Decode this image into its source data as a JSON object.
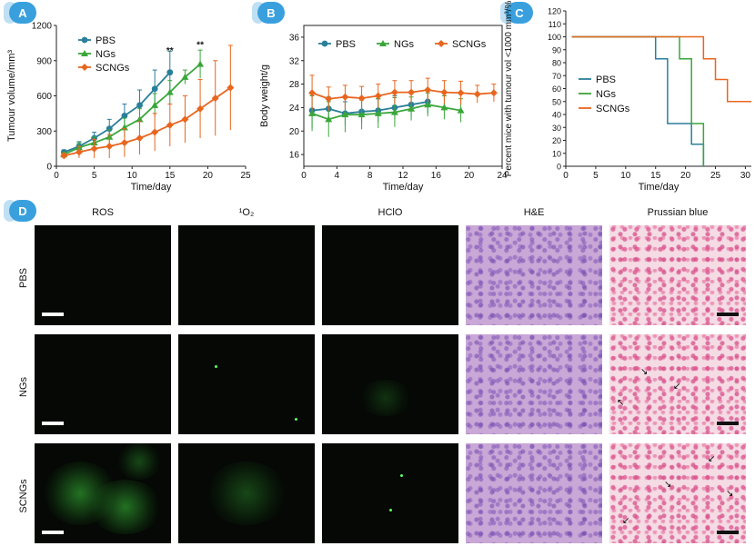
{
  "panels": {
    "A": {
      "badge": "A"
    },
    "B": {
      "badge": "B"
    },
    "C": {
      "badge": "C"
    },
    "D": {
      "badge": "D"
    }
  },
  "chart_data": [
    {
      "type": "line",
      "xlabel": "Time/day",
      "ylabel": "Tumour volume/mm³",
      "xlim": [
        0,
        25
      ],
      "ylim": [
        0,
        1200
      ],
      "xticks": [
        0,
        5,
        10,
        15,
        20,
        25
      ],
      "yticks": [
        0,
        300,
        600,
        900,
        1200
      ],
      "legend": "top-left",
      "annotations": [
        "**",
        "**"
      ],
      "series": [
        {
          "name": "PBS",
          "color": "#2a7f9a",
          "marker": "circle",
          "x": [
            1,
            3,
            5,
            7,
            9,
            11,
            13,
            15
          ],
          "y": [
            120,
            170,
            240,
            320,
            430,
            520,
            660,
            800
          ],
          "err": [
            20,
            40,
            50,
            80,
            100,
            130,
            160,
            180
          ]
        },
        {
          "name": "NGs",
          "color": "#3aa63a",
          "marker": "triangle",
          "x": [
            1,
            3,
            5,
            7,
            9,
            11,
            13,
            15,
            17,
            19
          ],
          "y": [
            100,
            160,
            200,
            250,
            330,
            400,
            520,
            630,
            760,
            870
          ],
          "err": [
            20,
            40,
            50,
            60,
            80,
            90,
            100,
            100,
            60,
            120
          ]
        },
        {
          "name": "SCNGs",
          "color": "#e8661f",
          "marker": "diamond",
          "x": [
            1,
            3,
            5,
            7,
            9,
            11,
            13,
            15,
            17,
            19,
            21,
            23
          ],
          "y": [
            90,
            120,
            150,
            170,
            200,
            240,
            290,
            350,
            400,
            490,
            580,
            670
          ],
          "err": [
            20,
            50,
            80,
            100,
            120,
            140,
            160,
            180,
            200,
            250,
            320,
            360
          ]
        }
      ]
    },
    {
      "type": "line",
      "xlabel": "Time/day",
      "ylabel": "Body weight/g",
      "xlim": [
        0,
        24
      ],
      "ylim": [
        14,
        38
      ],
      "xticks": [
        0,
        4,
        8,
        12,
        16,
        20,
        24
      ],
      "yticks": [
        16,
        20,
        24,
        28,
        32,
        36
      ],
      "legend": "top",
      "series": [
        {
          "name": "PBS",
          "color": "#2a7f9a",
          "marker": "circle",
          "x": [
            1,
            3,
            5,
            7,
            9,
            11,
            13,
            15
          ],
          "y": [
            23.5,
            23.8,
            23.0,
            23.3,
            23.5,
            24.0,
            24.5,
            25.0
          ],
          "err": [
            3,
            2,
            2,
            2,
            2,
            2,
            2,
            2
          ]
        },
        {
          "name": "NGs",
          "color": "#3aa63a",
          "marker": "triangle",
          "x": [
            1,
            3,
            5,
            7,
            9,
            11,
            13,
            15,
            17,
            19
          ],
          "y": [
            23.0,
            22.0,
            22.8,
            22.8,
            23.0,
            23.2,
            23.8,
            24.5,
            24.0,
            23.5
          ],
          "err": [
            3,
            3,
            3,
            2.5,
            2.5,
            2.5,
            2,
            2,
            2,
            2
          ]
        },
        {
          "name": "SCNGs",
          "color": "#e8661f",
          "marker": "diamond",
          "x": [
            1,
            3,
            5,
            7,
            9,
            11,
            13,
            15,
            17,
            19,
            21,
            23
          ],
          "y": [
            26.5,
            25.5,
            25.8,
            25.6,
            26.0,
            26.6,
            26.6,
            27.0,
            26.6,
            26.5,
            26.3,
            26.5
          ],
          "err": [
            3,
            2,
            2,
            2,
            2,
            2,
            2,
            2,
            2,
            2,
            1.5,
            1.5
          ]
        }
      ]
    },
    {
      "type": "line",
      "xlabel": "Time/day",
      "ylabel": "Percent mice with tumour vol <1000 mm³/%",
      "xlim": [
        0,
        31
      ],
      "ylim": [
        0,
        120
      ],
      "xticks": [
        0,
        5,
        10,
        15,
        20,
        25,
        30
      ],
      "yticks": [
        0,
        10,
        20,
        30,
        40,
        50,
        60,
        70,
        80,
        90,
        100,
        110,
        120
      ],
      "legend": "left",
      "step": true,
      "series": [
        {
          "name": "PBS",
          "color": "#2a7f9a",
          "x": [
            1,
            15,
            17,
            21,
            23
          ],
          "y": [
            100,
            83,
            33,
            17,
            0
          ]
        },
        {
          "name": "NGs",
          "color": "#3aa63a",
          "x": [
            1,
            19,
            21,
            23
          ],
          "y": [
            100,
            83,
            33,
            0
          ]
        },
        {
          "name": "SCNGs",
          "color": "#e8661f",
          "x": [
            1,
            23,
            25,
            27,
            31
          ],
          "y": [
            100,
            83,
            67,
            50,
            50
          ]
        }
      ]
    }
  ],
  "images": {
    "columns": [
      "ROS",
      "¹O₂",
      "HClO",
      "H&E",
      "Prussian blue"
    ],
    "rows": [
      "PBS",
      "NGs",
      "SCNGs"
    ]
  }
}
